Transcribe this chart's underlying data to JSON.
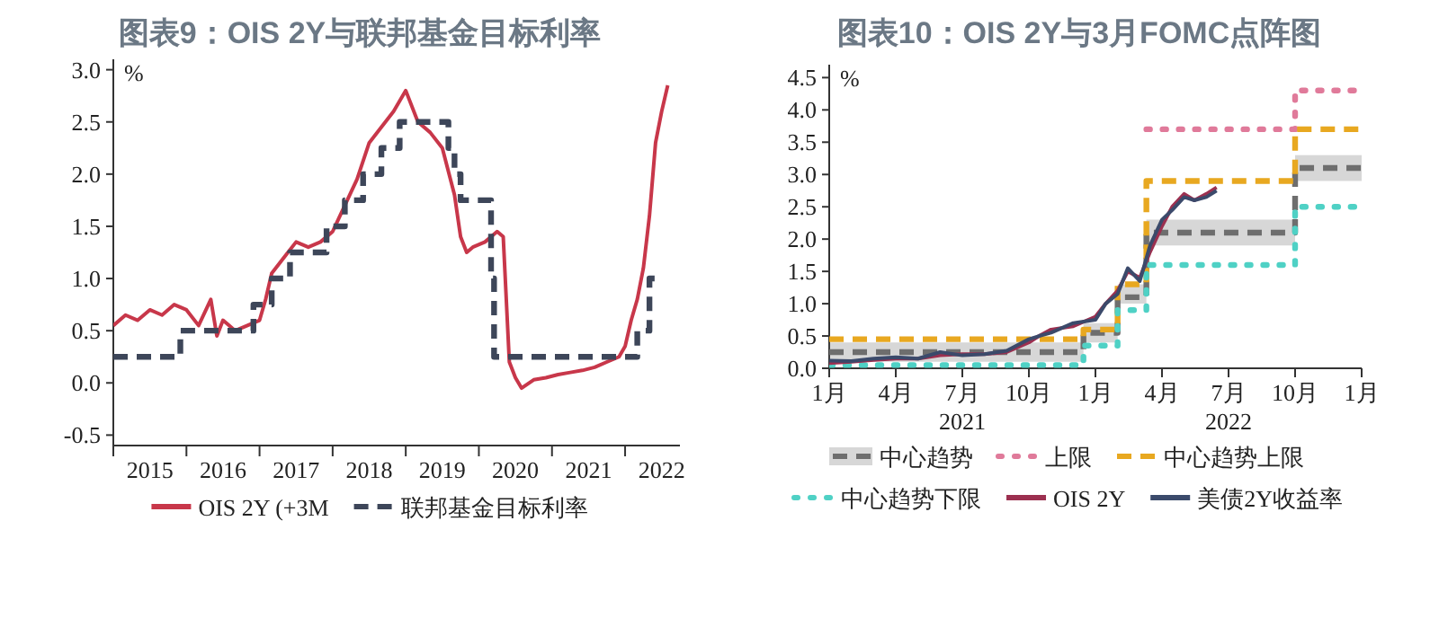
{
  "chart_data": [
    {
      "type": "line",
      "title": "图表9：OIS 2Y与联邦基金目标利率",
      "ylabel": "%",
      "legend": "bottom",
      "xlim": [
        "2015-01",
        "2022-10"
      ],
      "xticks": [
        {
          "value": "2015-01",
          "label": null
        },
        {
          "value": "2015-07",
          "label": "2015"
        },
        {
          "value": "2016-01",
          "label": null
        },
        {
          "value": "2016-07",
          "label": "2016"
        },
        {
          "value": "2017-01",
          "label": null
        },
        {
          "value": "2017-07",
          "label": "2017"
        },
        {
          "value": "2018-01",
          "label": null
        },
        {
          "value": "2018-07",
          "label": "2018"
        },
        {
          "value": "2019-01",
          "label": null
        },
        {
          "value": "2019-07",
          "label": "2019"
        },
        {
          "value": "2020-01",
          "label": null
        },
        {
          "value": "2020-07",
          "label": "2020"
        },
        {
          "value": "2021-01",
          "label": null
        },
        {
          "value": "2021-07",
          "label": "2021"
        },
        {
          "value": "2022-01",
          "label": null
        },
        {
          "value": "2022-07",
          "label": "2022"
        }
      ],
      "ylim": [
        -0.6,
        3.1
      ],
      "yticks": [
        {
          "value": -0.5,
          "label": "-0.5"
        },
        {
          "value": 0,
          "label": "0.0"
        },
        {
          "value": 0.5,
          "label": "0.5"
        },
        {
          "value": 1,
          "label": "1.0"
        },
        {
          "value": 1.5,
          "label": "1.5"
        },
        {
          "value": 2,
          "label": "2.0"
        },
        {
          "value": 2.5,
          "label": "2.5"
        },
        {
          "value": 3,
          "label": "3.0"
        }
      ],
      "series": [
        {
          "name": "OIS 2Y (+3M",
          "color": "#c8374a",
          "line_style": "solid",
          "x": [
            "2015-01",
            "2015-03",
            "2015-05",
            "2015-07",
            "2015-09",
            "2015-11",
            "2016-01",
            "2016-03",
            "2016-05",
            "2016-06",
            "2016-07",
            "2016-09",
            "2016-11",
            "2017-01",
            "2017-02",
            "2017-03",
            "2017-05",
            "2017-07",
            "2017-09",
            "2017-11",
            "2018-01",
            "2018-03",
            "2018-05",
            "2018-07",
            "2018-09",
            "2018-11",
            "2019-01",
            "2019-03",
            "2019-05",
            "2019-07",
            "2019-09",
            "2019-10",
            "2019-11",
            "2019-12",
            "2020-02",
            "2020-04",
            "2020-05",
            "2020-06",
            "2020-07",
            "2020-08",
            "2020-10",
            "2020-12",
            "2021-02",
            "2021-04",
            "2021-06",
            "2021-08",
            "2021-10",
            "2021-12",
            "2022-01",
            "2022-02",
            "2022-03",
            "2022-04",
            "2022-05",
            "2022-06",
            "2022-07",
            "2022-08"
          ],
          "values": [
            0.55,
            0.65,
            0.6,
            0.7,
            0.65,
            0.75,
            0.7,
            0.55,
            0.8,
            0.45,
            0.6,
            0.5,
            0.55,
            0.6,
            0.8,
            1.05,
            1.2,
            1.35,
            1.3,
            1.35,
            1.45,
            1.7,
            1.95,
            2.3,
            2.45,
            2.6,
            2.8,
            2.5,
            2.4,
            2.25,
            1.8,
            1.4,
            1.25,
            1.3,
            1.35,
            1.45,
            1.4,
            0.2,
            0.05,
            -0.05,
            0.03,
            0.05,
            0.08,
            0.1,
            0.12,
            0.15,
            0.2,
            0.25,
            0.35,
            0.6,
            0.8,
            1.1,
            1.6,
            2.3,
            2.6,
            2.85
          ]
        },
        {
          "name": "联邦基金目标利率",
          "color": "#3d4659",
          "type": "step",
          "line_style": "dashed",
          "x": [
            "2015-01",
            "2015-12",
            "2016-12",
            "2017-03",
            "2017-06",
            "2017-12",
            "2018-03",
            "2018-06",
            "2018-09",
            "2018-12",
            "2019-08",
            "2019-09",
            "2019-10",
            "2020-03",
            "2020-03-16",
            "2022-03",
            "2022-05",
            "2022-06"
          ],
          "values": [
            0.25,
            0.5,
            0.75,
            1.0,
            1.25,
            1.5,
            1.75,
            2.0,
            2.25,
            2.5,
            2.25,
            2.0,
            1.75,
            1.0,
            0.25,
            0.5,
            1.0,
            1.0
          ]
        }
      ]
    },
    {
      "type": "step",
      "title": "图表10：OIS 2Y与3月FOMC点阵图",
      "ylabel": "%",
      "legend": "bottom",
      "xlim": [
        "2021-01",
        "2023-01"
      ],
      "xticks": [
        {
          "value": "2021-01",
          "label": "1月"
        },
        {
          "value": "2021-04",
          "label": "4月"
        },
        {
          "value": "2021-07",
          "label": "7月"
        },
        {
          "value": "2021-10",
          "label": "10月"
        },
        {
          "value": "2022-01",
          "label": "1月"
        },
        {
          "value": "2022-04",
          "label": "4月"
        },
        {
          "value": "2022-07",
          "label": "7月"
        },
        {
          "value": "2022-10",
          "label": "10月"
        },
        {
          "value": "2023-01",
          "label": "1月"
        }
      ],
      "ylim": [
        0,
        4.7
      ],
      "yticks": [
        {
          "value": 0,
          "label": "0.0"
        },
        {
          "value": 0.5,
          "label": "0.5"
        },
        {
          "value": 1,
          "label": "1.0"
        },
        {
          "value": 1.5,
          "label": "1.5"
        },
        {
          "value": 2,
          "label": "2.0"
        },
        {
          "value": 2.5,
          "label": "2.5"
        },
        {
          "value": 3,
          "label": "3.0"
        },
        {
          "value": 3.5,
          "label": "3.5"
        },
        {
          "value": 4,
          "label": "4.0"
        },
        {
          "value": 4.5,
          "label": "4.5"
        }
      ],
      "annotations": [
        "2021",
        "2022"
      ],
      "series": [
        {
          "name": "中心趋势",
          "color": "#6e6e6e",
          "line_style": "dashed",
          "x": [
            "2021-01",
            "2021-12-15",
            "2022-02",
            "2022-03-10",
            "2022-10",
            "2023-01"
          ],
          "values": [
            0.25,
            0.55,
            1.1,
            2.1,
            3.1,
            3.1
          ],
          "lower": [
            0.1,
            0.4,
            1.0,
            1.9,
            2.9,
            2.9
          ],
          "upper": [
            0.4,
            0.7,
            1.3,
            2.3,
            3.3,
            3.3
          ]
        },
        {
          "name": "上限",
          "color": "#e07a9a",
          "line_style": "dotted",
          "x": [
            "2022-03-10",
            "2022-10",
            "2023-01"
          ],
          "values": [
            3.7,
            4.3,
            4.3
          ]
        },
        {
          "name": "中心趋势上限",
          "color": "#e8a820",
          "line_style": "dashed",
          "x": [
            "2021-01",
            "2021-12-15",
            "2022-02",
            "2022-03-10",
            "2022-10",
            "2023-01"
          ],
          "values": [
            0.45,
            0.6,
            1.3,
            2.9,
            3.7,
            3.7
          ]
        },
        {
          "name": "中心趋势下限",
          "color": "#4fd1c5",
          "line_style": "dotted",
          "x": [
            "2021-01",
            "2021-12-15",
            "2022-02",
            "2022-03-10",
            "2022-10",
            "2023-01"
          ],
          "values": [
            0.05,
            0.35,
            0.9,
            1.6,
            2.5,
            2.5
          ]
        },
        {
          "name": "OIS 2Y",
          "color": "#9c3050",
          "type": "line",
          "line_style": "solid",
          "x": [
            "2021-01",
            "2021-02",
            "2021-03",
            "2021-04",
            "2021-05",
            "2021-06",
            "2021-07",
            "2021-08",
            "2021-09",
            "2021-10",
            "2021-10-15",
            "2021-11",
            "2021-12",
            "2022-01",
            "2022-01-15",
            "2022-02",
            "2022-02-15",
            "2022-03",
            "2022-03-15",
            "2022-04",
            "2022-04-15",
            "2022-05",
            "2022-05-15",
            "2022-06",
            "2022-06-15"
          ],
          "values": [
            0.08,
            0.1,
            0.13,
            0.15,
            0.15,
            0.2,
            0.22,
            0.22,
            0.25,
            0.4,
            0.5,
            0.6,
            0.65,
            0.8,
            1.0,
            1.2,
            1.5,
            1.4,
            1.8,
            2.2,
            2.5,
            2.7,
            2.6,
            2.7,
            2.8
          ]
        },
        {
          "name": "美债2Y收益率",
          "color": "#3b4a6b",
          "type": "line",
          "line_style": "solid",
          "x": [
            "2021-01",
            "2021-02",
            "2021-03",
            "2021-04",
            "2021-05",
            "2021-06",
            "2021-07",
            "2021-08",
            "2021-09",
            "2021-10",
            "2021-10-15",
            "2021-11",
            "2021-12",
            "2022-01",
            "2022-01-15",
            "2022-02",
            "2022-02-15",
            "2022-03",
            "2022-03-15",
            "2022-04",
            "2022-04-15",
            "2022-05",
            "2022-05-15",
            "2022-06",
            "2022-06-15"
          ],
          "values": [
            0.12,
            0.11,
            0.15,
            0.17,
            0.15,
            0.25,
            0.2,
            0.22,
            0.27,
            0.45,
            0.5,
            0.55,
            0.7,
            0.75,
            1.0,
            1.15,
            1.55,
            1.35,
            1.9,
            2.3,
            2.45,
            2.65,
            2.6,
            2.65,
            2.75
          ]
        }
      ]
    }
  ]
}
